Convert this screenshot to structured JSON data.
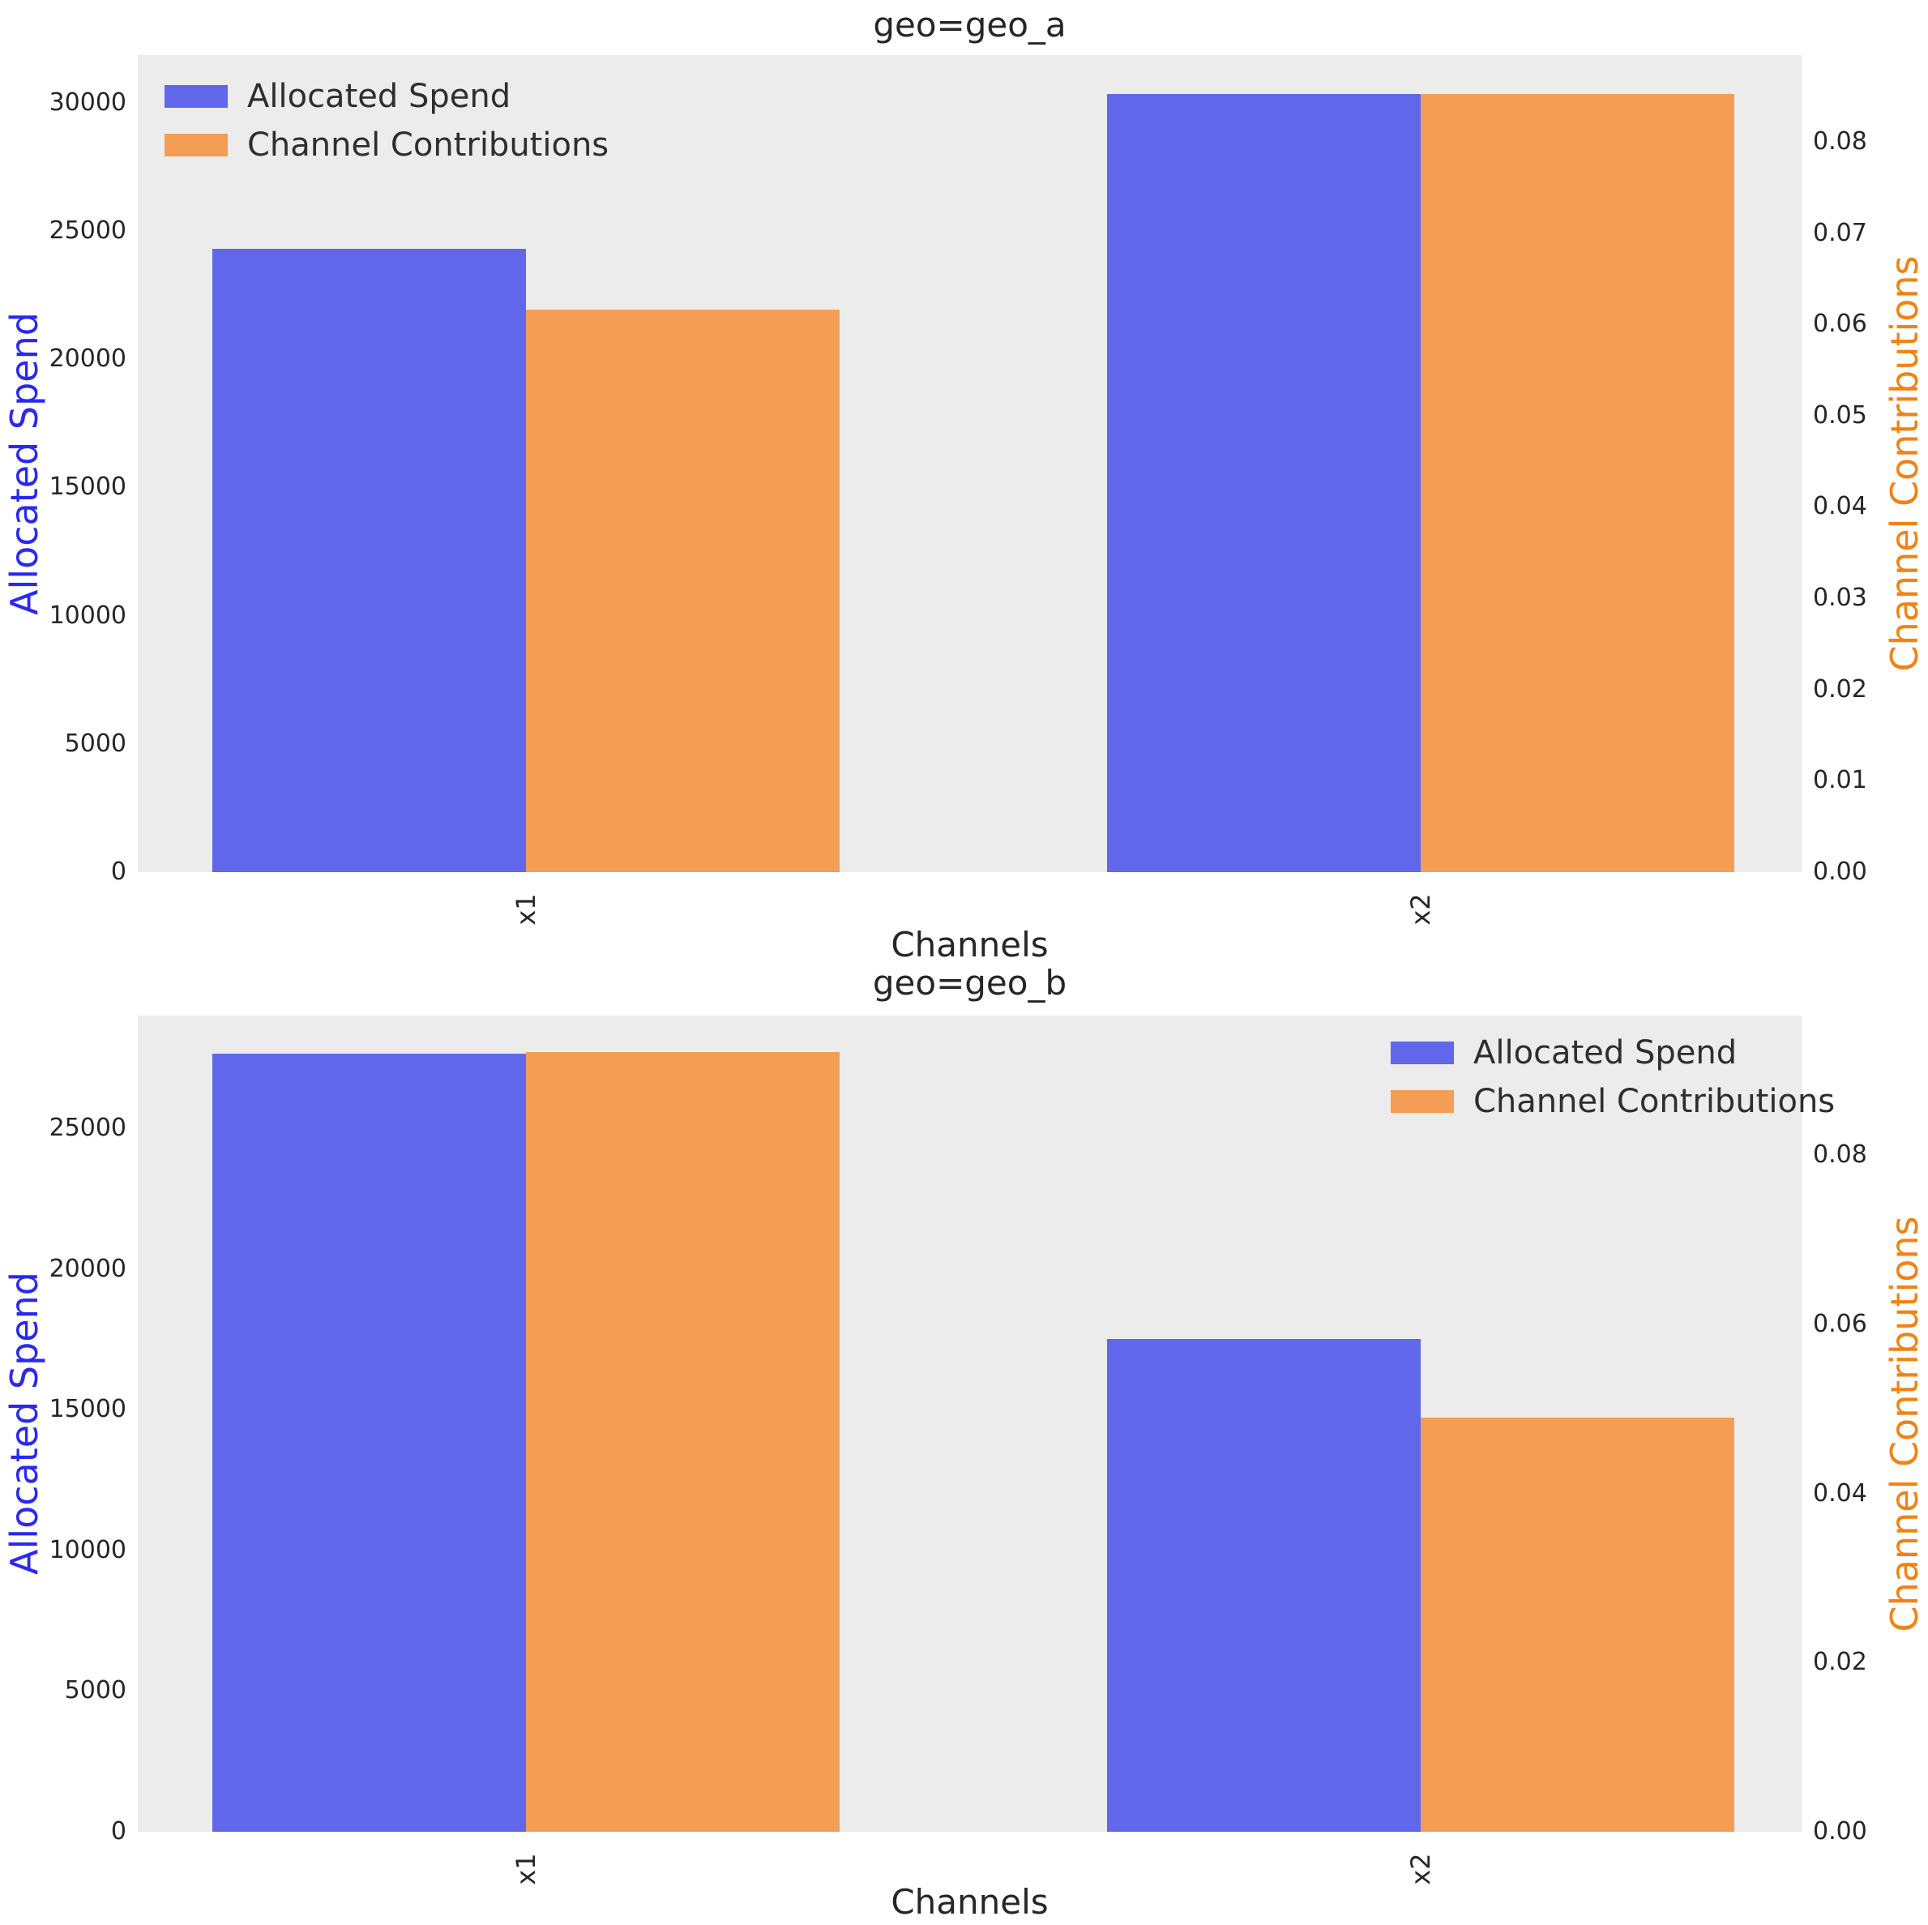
{
  "chart_data": [
    {
      "type": "bar",
      "title": "geo=geo_a",
      "xlabel": "Channels",
      "ylabel_left": "Allocated Spend",
      "ylabel_right": "Channel Contributions",
      "legend_position": "top-left",
      "categories": [
        "x1",
        "x2"
      ],
      "series": [
        {
          "name": "Allocated Spend",
          "axis": "left",
          "color": "#6167ea",
          "values": [
            24300,
            30350
          ]
        },
        {
          "name": "Channel Contributions",
          "axis": "right",
          "color": "#f49d55",
          "values": [
            0.0616,
            0.0852
          ]
        }
      ],
      "left_axis": {
        "max": 31860,
        "ticks": [
          {
            "value": 0,
            "label": "0"
          },
          {
            "value": 5000,
            "label": "5000"
          },
          {
            "value": 10000,
            "label": "10000"
          },
          {
            "value": 15000,
            "label": "15000"
          },
          {
            "value": 20000,
            "label": "20000"
          },
          {
            "value": 25000,
            "label": "25000"
          },
          {
            "value": 30000,
            "label": "30000"
          }
        ]
      },
      "right_axis": {
        "max": 0.0895,
        "ticks": [
          {
            "value": 0.0,
            "label": "0.00"
          },
          {
            "value": 0.01,
            "label": "0.01"
          },
          {
            "value": 0.02,
            "label": "0.02"
          },
          {
            "value": 0.03,
            "label": "0.03"
          },
          {
            "value": 0.04,
            "label": "0.04"
          },
          {
            "value": 0.05,
            "label": "0.05"
          },
          {
            "value": 0.06,
            "label": "0.06"
          },
          {
            "value": 0.07,
            "label": "0.07"
          },
          {
            "value": 0.08,
            "label": "0.08"
          }
        ]
      }
    },
    {
      "type": "bar",
      "title": "geo=geo_b",
      "xlabel": "Channels",
      "ylabel_left": "Allocated Spend",
      "ylabel_right": "Channel Contributions",
      "legend_position": "top-right",
      "categories": [
        "x1",
        "x2"
      ],
      "series": [
        {
          "name": "Allocated Spend",
          "axis": "left",
          "color": "#6167ea",
          "values": [
            27650,
            17500
          ]
        },
        {
          "name": "Channel Contributions",
          "axis": "right",
          "color": "#f49d55",
          "values": [
            0.0922,
            0.049
          ]
        }
      ],
      "left_axis": {
        "max": 29000,
        "ticks": [
          {
            "value": 0,
            "label": "0"
          },
          {
            "value": 5000,
            "label": "5000"
          },
          {
            "value": 10000,
            "label": "10000"
          },
          {
            "value": 15000,
            "label": "15000"
          },
          {
            "value": 20000,
            "label": "20000"
          },
          {
            "value": 25000,
            "label": "25000"
          }
        ]
      },
      "right_axis": {
        "max": 0.0965,
        "ticks": [
          {
            "value": 0.0,
            "label": "0.00"
          },
          {
            "value": 0.02,
            "label": "0.02"
          },
          {
            "value": 0.04,
            "label": "0.04"
          },
          {
            "value": 0.06,
            "label": "0.06"
          },
          {
            "value": 0.08,
            "label": "0.08"
          }
        ]
      }
    }
  ],
  "style": {
    "plot_background": "#ececec",
    "page_background": "#ffffff",
    "bar_blue": "#6167ea",
    "bar_orange": "#f49d55",
    "left_label_color": "#2929f0",
    "right_label_color": "#f28214",
    "tick_color": "#262626"
  }
}
